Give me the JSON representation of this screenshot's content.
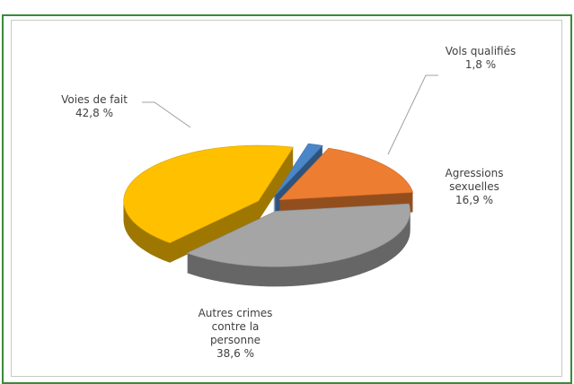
{
  "chart_data": {
    "type": "pie3d",
    "categories": [
      "Vols qualifiés",
      "Agressions sexuelles",
      "Autres crimes contre la personne",
      "Voies de fait"
    ],
    "values": [
      1.8,
      16.9,
      38.6,
      42.8
    ],
    "value_labels": [
      "1,8 %",
      "16,9 %",
      "38,6 %",
      "42,8 %"
    ],
    "colors": [
      "#4a86c8",
      "#ed7d31",
      "#a5a5a5",
      "#ffc000"
    ]
  }
}
